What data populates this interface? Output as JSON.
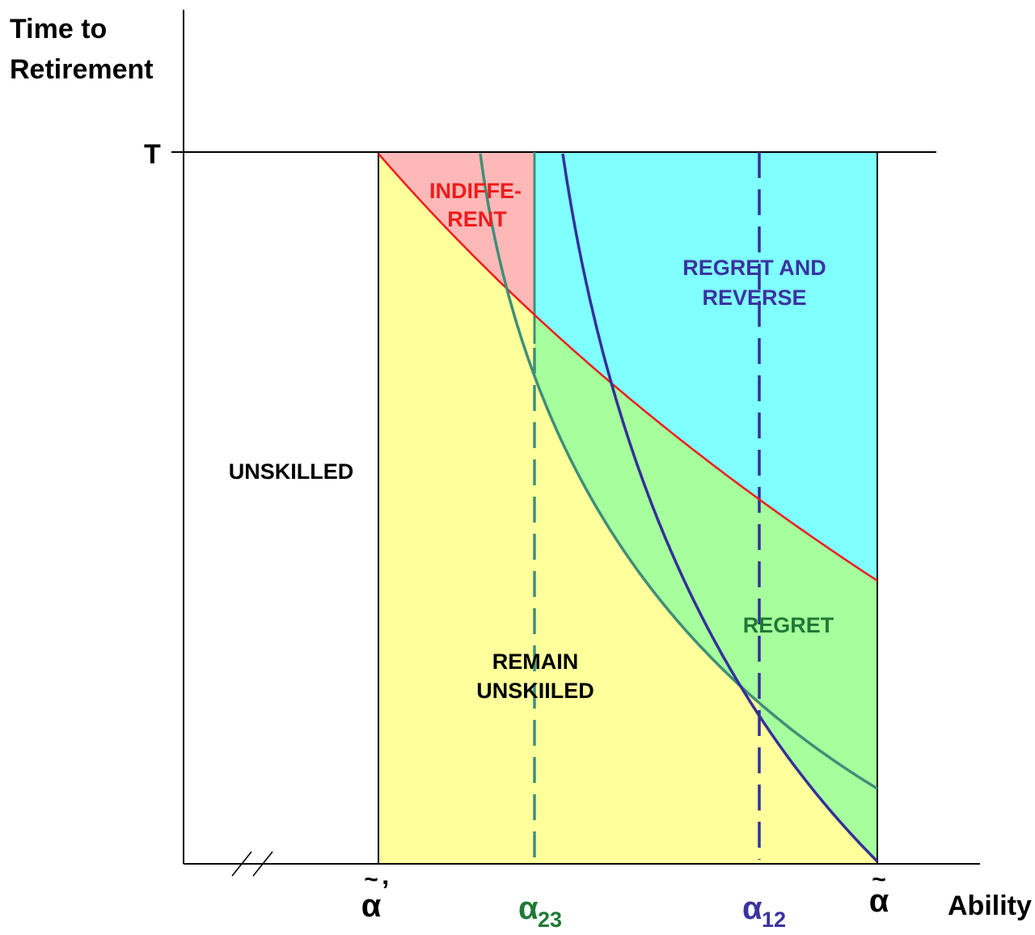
{
  "axes": {
    "y_label_line1": "Time to",
    "y_label_line2": "Retirement",
    "y_tick_top": "T",
    "x_label": "Ability",
    "x_ticks": {
      "alpha_tilde_prime": {
        "base": "α",
        "mark": "~",
        "prime": "’"
      },
      "alpha_23": {
        "base": "α",
        "sub": "23",
        "color": "#1f7a35"
      },
      "alpha_12": {
        "base": "α",
        "sub": "12",
        "color": "#3a33a0"
      },
      "alpha_tilde": {
        "base": "α",
        "mark": "~"
      }
    }
  },
  "regions": {
    "unskilled": {
      "label": "UNSKILLED",
      "color": "#000000"
    },
    "indifferent": {
      "label_line1": "INDIFFE-",
      "label_line2": "RENT",
      "color": "#ee1c1c",
      "fill": "#ffb8b8"
    },
    "regret_and_reverse": {
      "label_line1": "REGRET AND",
      "label_line2": "REVERSE",
      "color": "#3a33a0",
      "fill": "#80ffff"
    },
    "regret": {
      "label": "REGRET",
      "color": "#1f7a35",
      "fill": "#a6ff9c"
    },
    "remain_unskilled": {
      "label_line1": "REMAIN",
      "label_line2": "UNSKIILED",
      "color": "#000000",
      "fill": "#ffff9c"
    }
  },
  "curves": {
    "red": "#ee1c1c",
    "green": "#3f8f78",
    "blue": "#34309a"
  }
}
